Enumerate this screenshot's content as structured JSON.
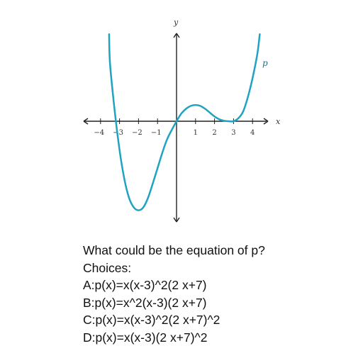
{
  "chart_data": {
    "type": "line",
    "xlabel": "x",
    "ylabel": "y",
    "x_ticks": [
      "−4",
      "−3",
      "−2",
      "−1",
      "1",
      "2",
      "3",
      "4"
    ],
    "xlim": [
      -4.7,
      4.9
    ],
    "ylim": [
      -10,
      9
    ],
    "grid": false,
    "series": [
      {
        "name": "p",
        "color": "#1fa3c1",
        "x": [
          -3.55,
          -3.5,
          -3.25,
          -3.0,
          -2.75,
          -2.5,
          -2.25,
          -2.0,
          -1.75,
          -1.5,
          -1.25,
          -1.0,
          -0.75,
          -0.5,
          -0.25,
          0.0,
          0.25,
          0.5,
          0.75,
          1.0,
          1.25,
          1.5,
          1.75,
          2.0,
          2.25,
          2.5,
          2.75,
          3.0,
          3.25,
          3.5,
          3.75,
          4.0,
          4.25,
          4.38
        ],
        "y": [
          9.1,
          6.0,
          1.0,
          -3.0,
          -6.0,
          -8.0,
          -9.0,
          -9.3,
          -9.0,
          -8.0,
          -6.5,
          -4.9,
          -3.3,
          -1.9,
          -0.9,
          0.0,
          0.8,
          1.3,
          1.6,
          1.7,
          1.6,
          1.3,
          0.9,
          0.5,
          0.2,
          0.05,
          0.0,
          0.0,
          0.3,
          1.0,
          2.5,
          4.5,
          7.0,
          9.1
        ]
      }
    ]
  },
  "question": {
    "prompt": "What could be the equation of p?",
    "choices_heading": "Choices:",
    "choices": [
      "A:p(x)=x(x-3)^2(2 x+7)",
      "B:p(x)=x^2(x-3)(2 x+7)",
      "C:p(x)=x(x-3)^2(2 x+7)^2",
      "D:p(x)=x(x-3)(2 x+7)^2"
    ]
  }
}
